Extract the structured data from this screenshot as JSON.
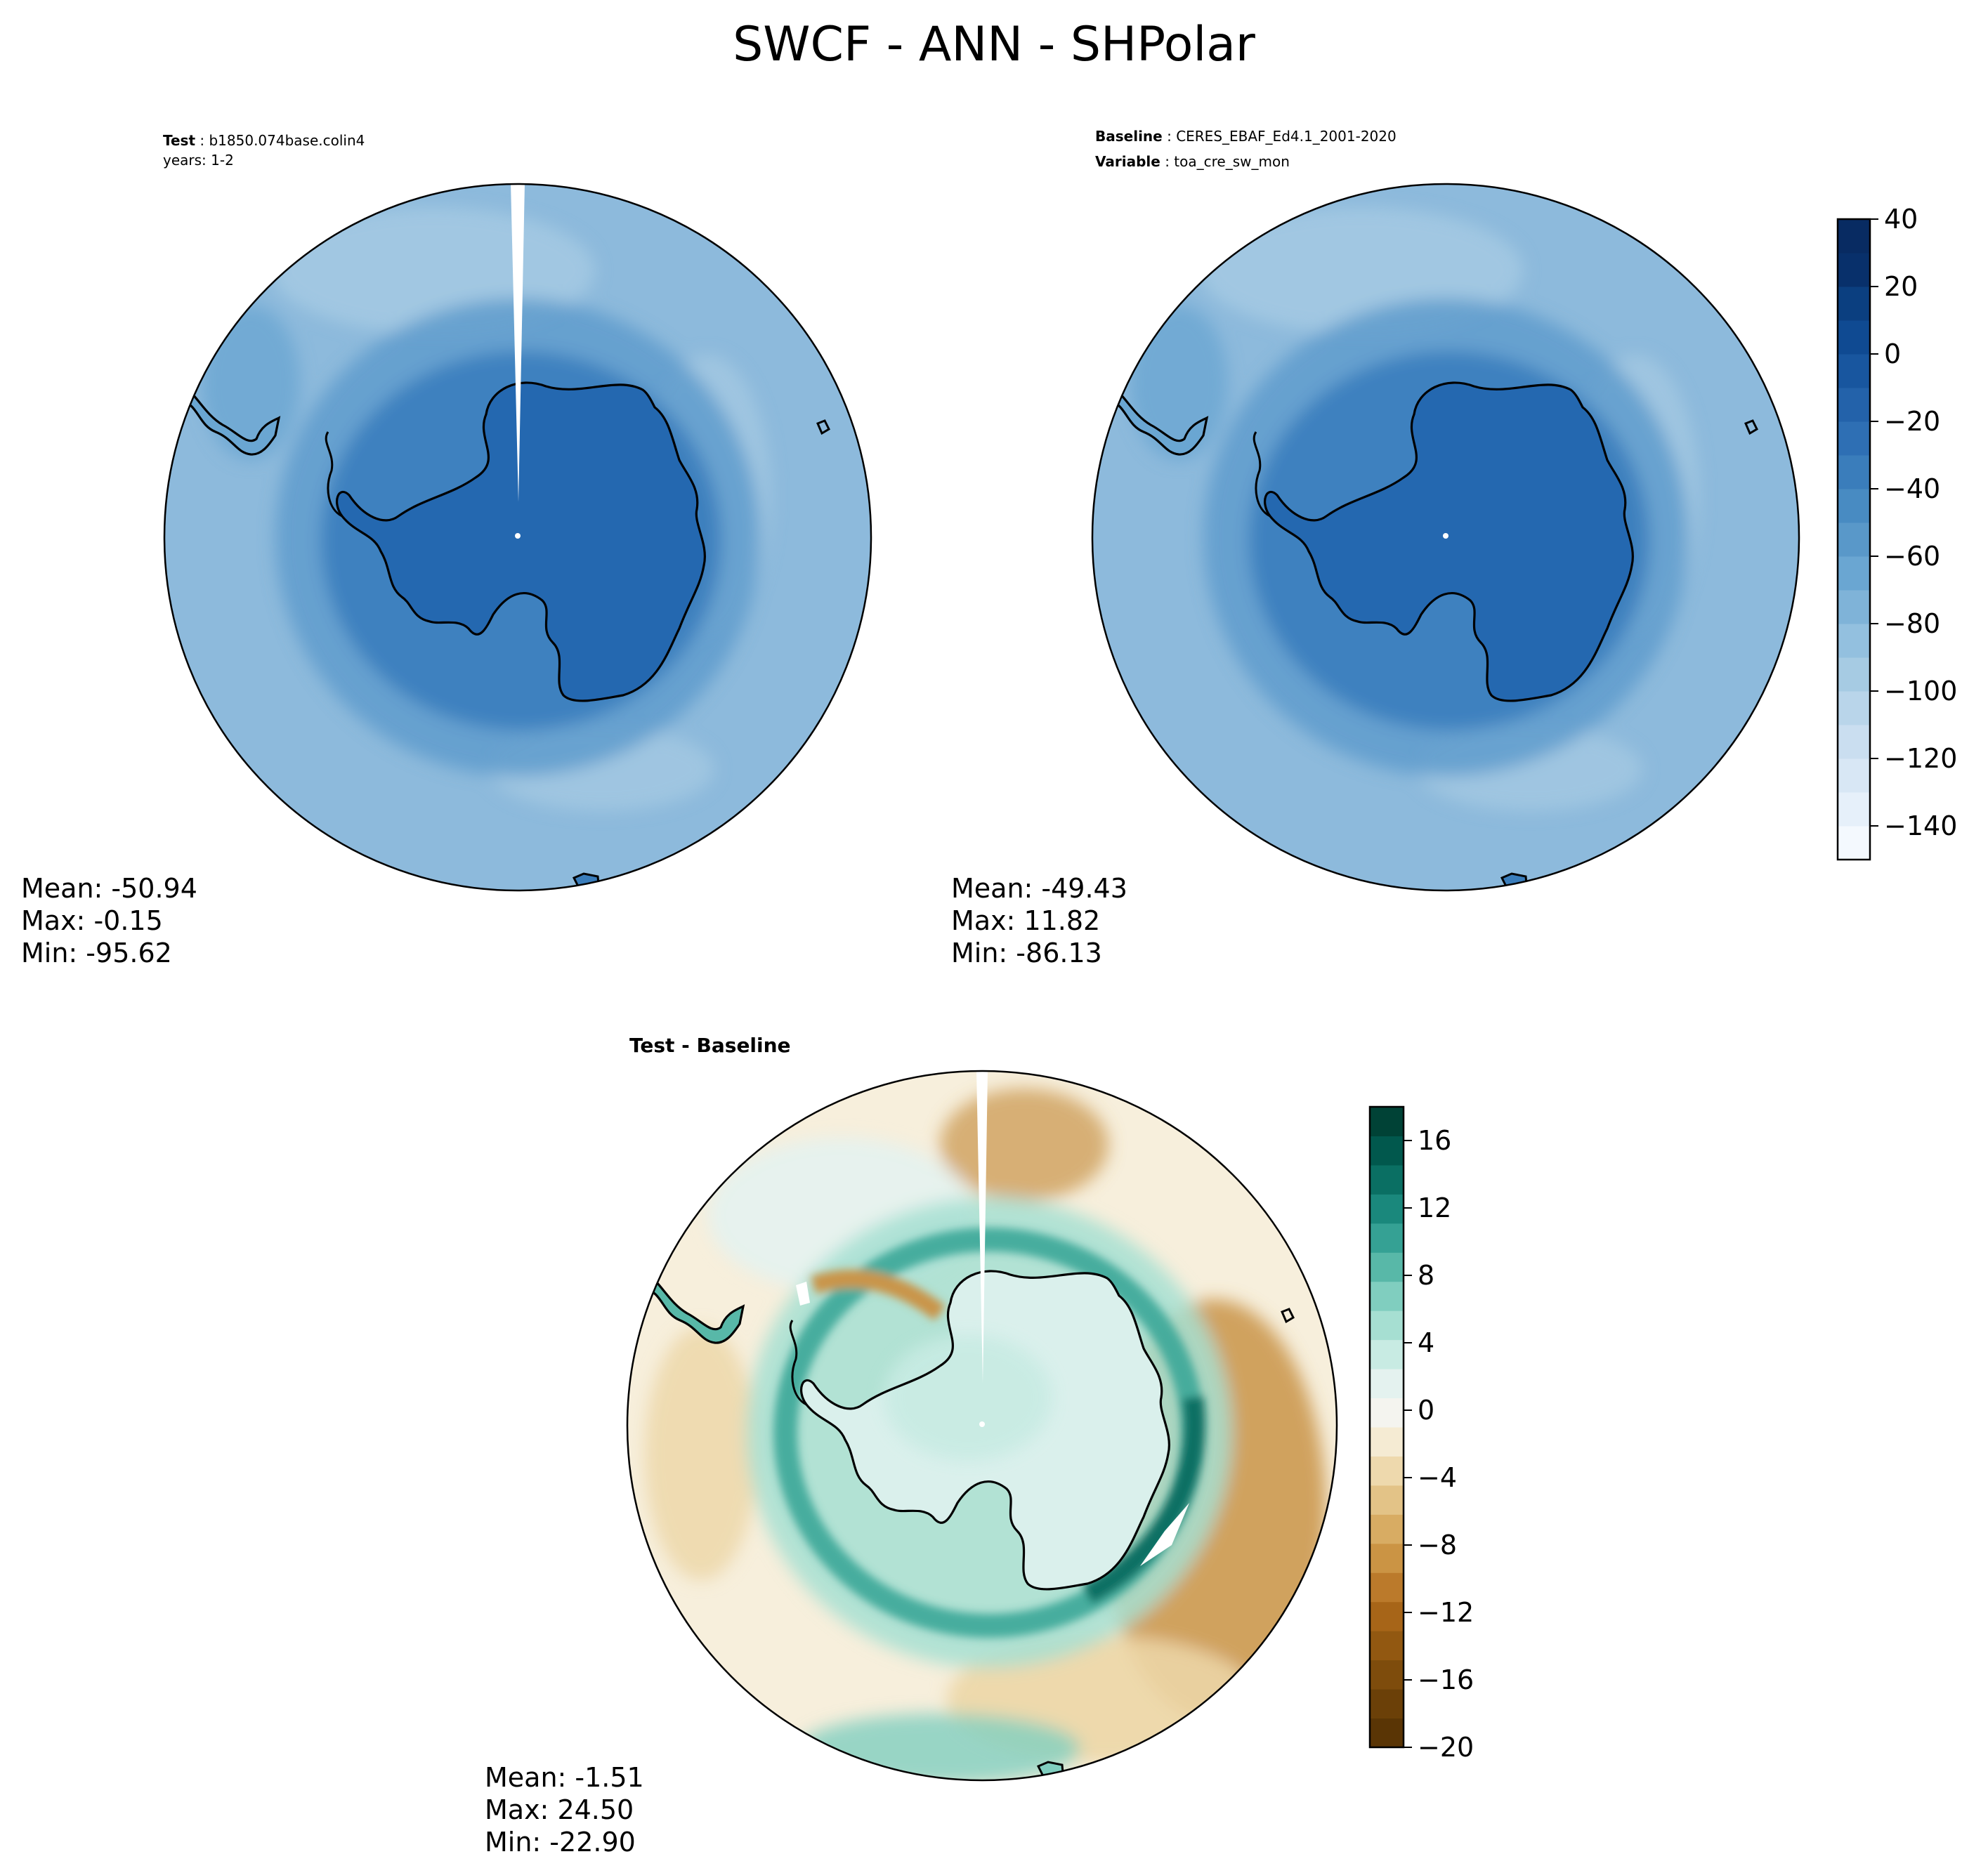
{
  "title": "SWCF - ANN - SHPolar",
  "panels": [
    {
      "id": "test",
      "lines": [
        {
          "key": "Test",
          "value": "b1850.074base.colin4"
        },
        {
          "key": "",
          "value": "years: 1-2"
        }
      ],
      "stats": {
        "mean": "Mean: -50.94",
        "max": "Max: -0.15",
        "min": "Min: -95.62"
      }
    },
    {
      "id": "baseline",
      "lines": [
        {
          "key": "Baseline",
          "value": "CERES_EBAF_Ed4.1_2001-2020"
        },
        {
          "key": "Variable",
          "value": "toa_cre_sw_mon"
        }
      ],
      "stats": {
        "mean": "Mean: -49.43",
        "max": "Max: 11.82",
        "min": "Min: -86.13"
      }
    },
    {
      "id": "diff",
      "lines": [
        {
          "key": "Test - Baseline",
          "value": ""
        }
      ],
      "stats": {
        "mean": "Mean: -1.51",
        "max": "Max: 24.50",
        "min": "Min: -22.90"
      }
    }
  ],
  "colorbars": {
    "main": {
      "ticks": [
        "40",
        "20",
        "0",
        "−20",
        "−40",
        "−60",
        "−80",
        "−100",
        "−120",
        "−140"
      ],
      "tick_values": [
        40,
        20,
        0,
        -20,
        -40,
        -60,
        -80,
        -100,
        -120,
        -140
      ],
      "range": [
        -150,
        40
      ],
      "palette": [
        "#f4f9fe",
        "#e6f0fa",
        "#d8e7f5",
        "#cadef0",
        "#b9d5ea",
        "#a6cbe3",
        "#93c0df",
        "#7fb3d8",
        "#6aa6d2",
        "#5998c9",
        "#488bc2",
        "#3a7dbb",
        "#2e6fb4",
        "#2362aa",
        "#18569f",
        "#0f4a92",
        "#0b3f80",
        "#08306b",
        "#082b62"
      ]
    },
    "diff": {
      "ticks": [
        "16",
        "12",
        "8",
        "4",
        "0",
        "−4",
        "−8",
        "−12",
        "−16",
        "−20"
      ],
      "tick_values": [
        16,
        12,
        8,
        4,
        0,
        -4,
        -8,
        -12,
        -16,
        -20
      ],
      "range": [
        -20,
        18
      ],
      "palette": [
        "#5a3505",
        "#6b4008",
        "#7e4c0c",
        "#925811",
        "#a76518",
        "#bb7a2b",
        "#cb9444",
        "#d8ac63",
        "#e3c387",
        "#eed9ad",
        "#f5ebd3",
        "#f4f4ef",
        "#e4f2ef",
        "#c8ebe3",
        "#a6dfd2",
        "#80cebf",
        "#58b8a8",
        "#35a194",
        "#1a887c",
        "#0a6f63",
        "#01584d",
        "#004236"
      ]
    }
  },
  "map_colors": {
    "ocean_main": "#8dbadc",
    "ring_main": "#5f9ccd",
    "coast_main": "#3b7ebe",
    "land_main": "#2468b0",
    "diff_land": "#daf0ec",
    "diff_ring": "#3aa798",
    "diff_brown": "#c99448",
    "diff_tan": "#ecd6a6"
  }
}
